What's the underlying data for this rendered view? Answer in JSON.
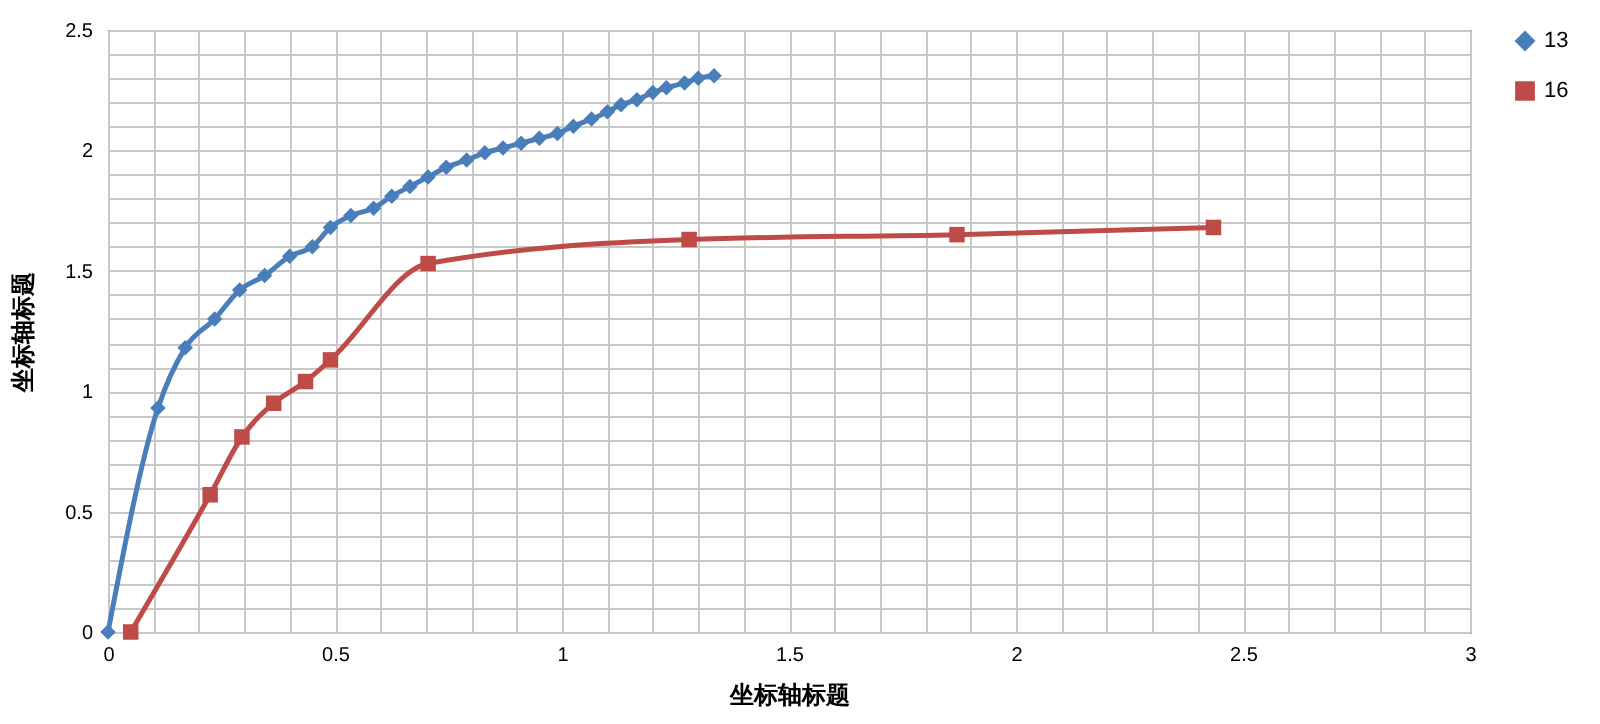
{
  "chart_data": {
    "type": "line",
    "xlabel": "坐标轴标题",
    "ylabel": "坐标轴标题",
    "xlim": [
      0,
      3
    ],
    "ylim": [
      0,
      2.5
    ],
    "xticks": [
      0,
      {
        "value": 0.1,
        "label": null
      },
      {
        "value": 0.2,
        "label": null
      },
      {
        "value": 0.3,
        "label": null
      },
      {
        "value": 0.4,
        "label": null
      },
      0.5,
      {
        "value": 0.6,
        "label": null
      },
      {
        "value": 0.7,
        "label": null
      },
      {
        "value": 0.8,
        "label": null
      },
      {
        "value": 0.9,
        "label": null
      },
      1,
      {
        "value": 1.1,
        "label": null
      },
      {
        "value": 1.2,
        "label": null
      },
      {
        "value": 1.3,
        "label": null
      },
      {
        "value": 1.4,
        "label": null
      },
      1.5,
      {
        "value": 1.6,
        "label": null
      },
      {
        "value": 1.7,
        "label": null
      },
      {
        "value": 1.8,
        "label": null
      },
      {
        "value": 1.9,
        "label": null
      },
      2,
      {
        "value": 2.1,
        "label": null
      },
      {
        "value": 2.2,
        "label": null
      },
      {
        "value": 2.3,
        "label": null
      },
      {
        "value": 2.4,
        "label": null
      },
      2.5,
      {
        "value": 2.6,
        "label": null
      },
      {
        "value": 2.7,
        "label": null
      },
      {
        "value": 2.8,
        "label": null
      },
      {
        "value": 2.9,
        "label": null
      },
      3
    ],
    "yticks": [
      0,
      {
        "value": 0.1,
        "label": null
      },
      {
        "value": 0.2,
        "label": null
      },
      {
        "value": 0.3,
        "label": null
      },
      {
        "value": 0.4,
        "label": null
      },
      0.5,
      {
        "value": 0.6,
        "label": null
      },
      {
        "value": 0.7,
        "label": null
      },
      {
        "value": 0.8,
        "label": null
      },
      {
        "value": 0.9,
        "label": null
      },
      1,
      {
        "value": 1.1,
        "label": null
      },
      {
        "value": 1.2,
        "label": null
      },
      {
        "value": 1.3,
        "label": null
      },
      {
        "value": 1.4,
        "label": null
      },
      1.5,
      {
        "value": 1.6,
        "label": null
      },
      {
        "value": 1.7,
        "label": null
      },
      {
        "value": 1.8,
        "label": null
      },
      {
        "value": 1.9,
        "label": null
      },
      2,
      {
        "value": 2.1,
        "label": null
      },
      {
        "value": 2.2,
        "label": null
      },
      {
        "value": 2.3,
        "label": null
      },
      {
        "value": 2.4,
        "label": null
      },
      2.5
    ],
    "grid": true,
    "legend": "right",
    "line_style": "solid",
    "series": [
      {
        "name": "13",
        "color": "#4a7ebb",
        "marker": "diamond",
        "x": [
          0,
          0.11,
          0.17,
          0.235,
          0.29,
          0.345,
          0.4,
          0.45,
          0.49,
          0.535,
          0.585,
          0.625,
          0.665,
          0.705,
          0.745,
          0.79,
          0.83,
          0.87,
          0.91,
          0.95,
          0.99,
          1.025,
          1.065,
          1.1,
          1.13,
          1.165,
          1.2,
          1.23,
          1.27,
          1.3,
          1.335
        ],
        "values": [
          0,
          0.93,
          1.18,
          1.3,
          1.42,
          1.48,
          1.56,
          1.6,
          1.68,
          1.73,
          1.76,
          1.81,
          1.85,
          1.89,
          1.93,
          1.96,
          1.99,
          2.01,
          2.03,
          2.05,
          2.07,
          2.1,
          2.13,
          2.16,
          2.19,
          2.21,
          2.24,
          2.26,
          2.28,
          2.3,
          2.31
        ]
      },
      {
        "name": "16",
        "color": "#be4b48",
        "marker": "square",
        "x": [
          0.05,
          0.225,
          0.295,
          0.365,
          0.435,
          0.49,
          0.705,
          1.28,
          1.87,
          2.435
        ],
        "values": [
          0,
          0.57,
          0.81,
          0.95,
          1.04,
          1.13,
          1.53,
          1.63,
          1.65,
          1.68
        ]
      }
    ]
  }
}
